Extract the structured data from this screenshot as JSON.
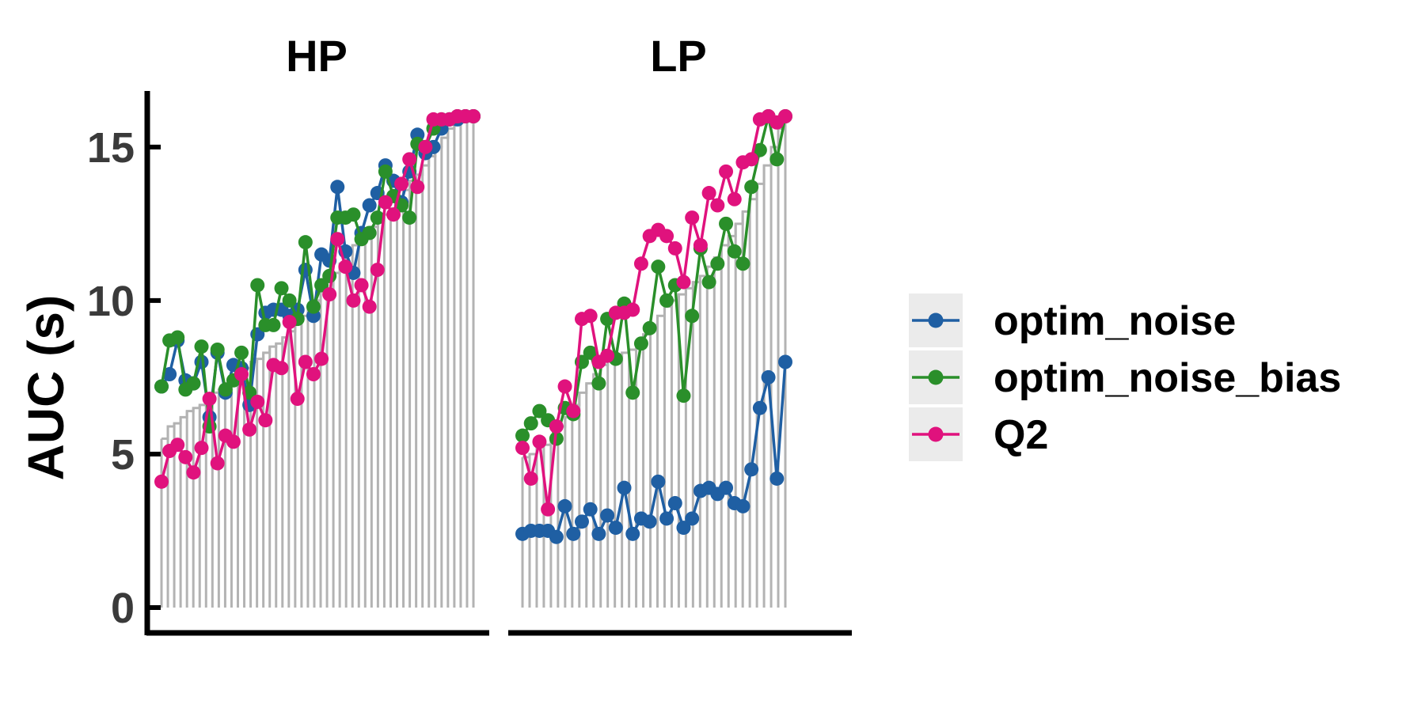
{
  "chart_data": {
    "type": "line",
    "ylabel": "AUC (s)",
    "xlabel": "",
    "ylim": [
      0,
      16.7
    ],
    "yticks": [
      0,
      5,
      10,
      15
    ],
    "grid": false,
    "legend_position": "right",
    "colors": {
      "optim_noise": "#1f5fa3",
      "optim_noise_bias": "#2a8f2a",
      "Q2": "#e0127d",
      "bars": "#b3b3b3",
      "axis": "#000000",
      "tick_text": "#3a3a3a"
    },
    "legend": [
      {
        "key": "optim_noise",
        "label": "optim_noise"
      },
      {
        "key": "optim_noise_bias",
        "label": "optim_noise_bias"
      },
      {
        "key": "Q2",
        "label": "Q2"
      }
    ],
    "panels": [
      {
        "title": "HP",
        "bars": [
          5.5,
          5.9,
          6.0,
          6.2,
          6.4,
          6.5,
          6.6,
          6.8,
          7.0,
          7.1,
          7.3,
          7.5,
          7.6,
          7.8,
          8.0,
          8.1,
          8.3,
          8.5,
          8.6,
          8.8,
          9.0,
          9.3,
          9.5,
          9.7,
          10.0,
          10.3,
          10.6,
          10.9,
          11.2,
          11.5,
          11.8,
          12.0,
          12.2,
          12.4,
          12.6,
          12.8,
          13.0,
          13.3,
          13.6,
          13.9,
          14.1,
          14.4,
          14.7,
          15.0,
          15.3,
          15.6,
          15.8,
          15.9,
          16.0,
          16.0
        ],
        "series": [
          {
            "name": "optim_noise",
            "key": "optim_noise",
            "values": [
              7.2,
              7.6,
              8.7,
              7.4,
              7.3,
              8.0,
              6.2,
              8.3,
              7.0,
              7.9,
              7.8,
              6.6,
              8.9,
              9.6,
              9.7,
              9.7,
              9.5,
              9.7,
              11.0,
              9.5,
              11.5,
              11.3,
              13.7,
              11.6,
              10.9,
              12.2,
              13.1,
              13.5,
              14.4,
              13.9,
              13.2,
              14.2,
              15.4,
              14.8,
              15.0,
              15.6,
              15.9,
              15.9,
              16.0,
              16.0
            ]
          },
          {
            "name": "optim_noise_bias",
            "key": "optim_noise_bias",
            "values": [
              7.2,
              8.7,
              8.8,
              7.1,
              7.3,
              8.5,
              5.9,
              8.4,
              7.1,
              7.4,
              8.3,
              7.0,
              10.5,
              9.2,
              9.2,
              10.4,
              10.0,
              9.4,
              11.9,
              9.8,
              10.5,
              10.8,
              12.7,
              12.7,
              12.8,
              12.0,
              12.2,
              12.7,
              14.2,
              13.4,
              13.1,
              12.7,
              15.1,
              15.0,
              15.6,
              15.9,
              15.9,
              16.0,
              16.0,
              16.0
            ]
          },
          {
            "name": "Q2",
            "key": "Q2",
            "values": [
              4.1,
              5.1,
              5.3,
              4.9,
              4.4,
              5.2,
              6.8,
              4.7,
              5.6,
              5.4,
              7.6,
              5.8,
              6.7,
              6.1,
              7.9,
              7.8,
              9.3,
              6.8,
              8.0,
              7.6,
              8.1,
              10.2,
              12.0,
              11.1,
              10.0,
              10.5,
              9.8,
              11.0,
              13.2,
              12.8,
              13.8,
              14.6,
              13.7,
              15.0,
              15.9,
              15.9,
              15.9,
              16.0,
              16.0,
              16.0
            ]
          }
        ]
      },
      {
        "title": "LP",
        "bars": [
          4.9,
          5.0,
          5.3,
          5.3,
          5.5,
          5.9,
          6.2,
          6.6,
          7.0,
          7.3,
          7.6,
          7.9,
          8.1,
          8.2,
          8.3,
          8.4,
          8.6,
          8.9,
          9.2,
          9.5,
          9.8,
          10.0,
          10.2,
          10.4,
          10.6,
          10.8,
          11.1,
          11.4,
          11.8,
          12.1,
          12.5,
          12.9,
          13.3,
          13.8,
          14.4,
          15.0,
          15.6,
          16.0
        ],
        "series": [
          {
            "name": "optim_noise",
            "key": "optim_noise",
            "values": [
              2.4,
              2.5,
              2.5,
              2.5,
              2.3,
              3.3,
              2.4,
              2.8,
              3.2,
              2.4,
              3.0,
              2.6,
              3.9,
              2.4,
              2.9,
              2.8,
              4.1,
              2.9,
              3.4,
              2.6,
              2.9,
              3.8,
              3.9,
              3.7,
              3.9,
              3.4,
              3.3,
              4.5,
              6.5,
              7.5,
              4.2,
              8.0
            ]
          },
          {
            "name": "optim_noise_bias",
            "key": "optim_noise_bias",
            "values": [
              5.6,
              6.0,
              6.4,
              6.1,
              5.5,
              6.5,
              6.3,
              8.0,
              8.3,
              7.3,
              9.4,
              8.1,
              9.9,
              7.0,
              8.6,
              9.1,
              11.1,
              10.0,
              10.5,
              6.9,
              9.5,
              11.7,
              10.6,
              11.2,
              12.5,
              11.6,
              11.2,
              13.7,
              14.9,
              16.0,
              14.6,
              16.0
            ]
          },
          {
            "name": "Q2",
            "key": "Q2",
            "values": [
              5.2,
              4.2,
              5.4,
              3.2,
              5.9,
              7.2,
              6.4,
              9.4,
              9.5,
              8.0,
              8.2,
              9.6,
              9.6,
              9.7,
              11.2,
              12.1,
              12.3,
              12.1,
              11.7,
              10.6,
              12.7,
              11.8,
              13.5,
              13.1,
              14.2,
              13.3,
              14.5,
              14.6,
              15.9,
              16.0,
              15.8,
              16.0
            ]
          }
        ]
      }
    ]
  }
}
